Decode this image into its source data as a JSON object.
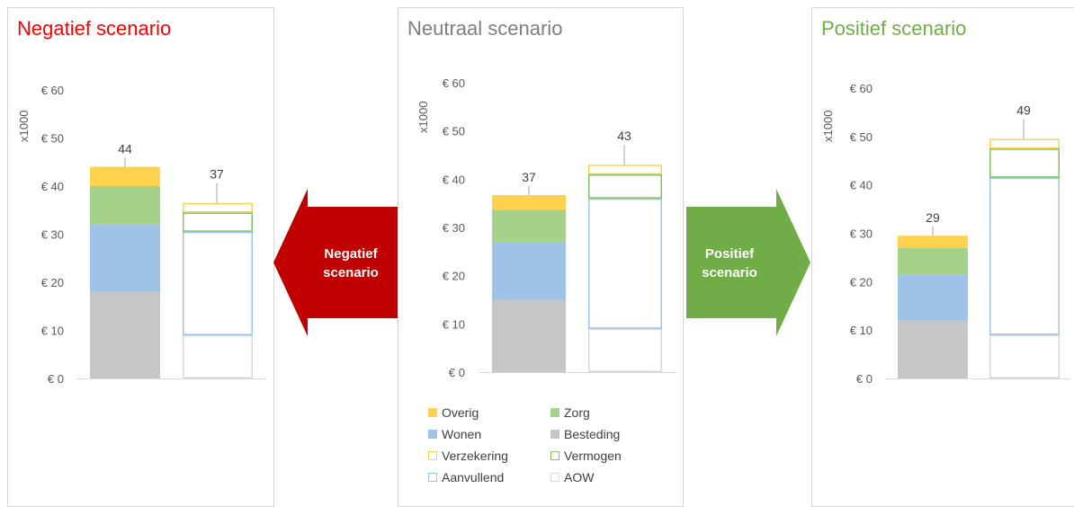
{
  "colors": {
    "Overig": "#ffd24d",
    "Zorg": "#a6d18a",
    "Wonen": "#9fc3e7",
    "Besteding": "#c6c6c6",
    "Verzekering": "#ffd24d",
    "Vermogen": "#82c36a",
    "Aanvullend": "#9fc3e7",
    "AOW": "#d9d9d9"
  },
  "panels": [
    {
      "title": "Negatief scenario",
      "title_color": "#ff0000",
      "ylabel": "x1000"
    },
    {
      "title": "Neutraal scenario",
      "title_color": "#7f7f7f",
      "ylabel": "x1000"
    },
    {
      "title": "Positief scenario",
      "title_color": "#70ad47",
      "ylabel": "x1000"
    }
  ],
  "arrows": {
    "left": {
      "label_line1": "Negatief",
      "label_line2": "scenario",
      "color": "#c00000"
    },
    "right": {
      "label_line1": "Positief",
      "label_line2": "scenario",
      "color": "#70ad47"
    }
  },
  "legend": {
    "items": [
      {
        "key": "Overig",
        "label": "Overig",
        "style": "filled"
      },
      {
        "key": "Zorg",
        "label": "Zorg",
        "style": "filled"
      },
      {
        "key": "Wonen",
        "label": "Wonen",
        "style": "filled"
      },
      {
        "key": "Besteding",
        "label": "Besteding",
        "style": "filled"
      },
      {
        "key": "Verzekering",
        "label": "Verzekering",
        "style": "outline"
      },
      {
        "key": "Vermogen",
        "label": "Vermogen",
        "style": "outline"
      },
      {
        "key": "Aanvullend",
        "label": "Aanvullend",
        "style": "outline"
      },
      {
        "key": "AOW",
        "label": "AOW",
        "style": "outline"
      }
    ]
  },
  "chart_data": [
    {
      "type": "bar",
      "stacked": true,
      "title": "Negatief scenario",
      "ylabel": "x1000",
      "ylim": [
        0,
        60
      ],
      "yticks": [
        0,
        10,
        20,
        30,
        40,
        50,
        60
      ],
      "ytick_labels": [
        "€ 0",
        "€ 10",
        "€ 20",
        "€ 30",
        "€ 40",
        "€ 50",
        "€ 60"
      ],
      "bars": [
        {
          "total_label": "44",
          "style": "filled",
          "segments": [
            {
              "name": "Besteding",
              "value": 18
            },
            {
              "name": "Wonen",
              "value": 14
            },
            {
              "name": "Zorg",
              "value": 8
            },
            {
              "name": "Overig",
              "value": 4
            }
          ]
        },
        {
          "total_label": "37",
          "style": "outline",
          "segments": [
            {
              "name": "AOW",
              "value": 9
            },
            {
              "name": "Aanvullend",
              "value": 21.5
            },
            {
              "name": "Vermogen",
              "value": 4
            },
            {
              "name": "Verzekering",
              "value": 2
            }
          ]
        }
      ]
    },
    {
      "type": "bar",
      "stacked": true,
      "title": "Neutraal scenario",
      "ylabel": "x1000",
      "ylim": [
        0,
        60
      ],
      "yticks": [
        0,
        10,
        20,
        30,
        40,
        50,
        60
      ],
      "ytick_labels": [
        "€ 0",
        "€ 10",
        "€ 20",
        "€ 30",
        "€ 40",
        "€ 50",
        "€ 60"
      ],
      "bars": [
        {
          "total_label": "37",
          "style": "filled",
          "segments": [
            {
              "name": "Besteding",
              "value": 15
            },
            {
              "name": "Wonen",
              "value": 12
            },
            {
              "name": "Zorg",
              "value": 6.7
            },
            {
              "name": "Overig",
              "value": 3
            }
          ]
        },
        {
          "total_label": "43",
          "style": "outline",
          "segments": [
            {
              "name": "AOW",
              "value": 9
            },
            {
              "name": "Aanvullend",
              "value": 27
            },
            {
              "name": "Vermogen",
              "value": 5
            },
            {
              "name": "Verzekering",
              "value": 2
            }
          ]
        }
      ]
    },
    {
      "type": "bar",
      "stacked": true,
      "title": "Positief scenario",
      "ylabel": "x1000",
      "ylim": [
        0,
        60
      ],
      "yticks": [
        0,
        10,
        20,
        30,
        40,
        50,
        60
      ],
      "ytick_labels": [
        "€ 0",
        "€ 10",
        "€ 20",
        "€ 30",
        "€ 40",
        "€ 50",
        "€ 60"
      ],
      "bars": [
        {
          "total_label": "29",
          "style": "filled",
          "segments": [
            {
              "name": "Besteding",
              "value": 12
            },
            {
              "name": "Wonen",
              "value": 9.5
            },
            {
              "name": "Zorg",
              "value": 5.5
            },
            {
              "name": "Overig",
              "value": 2.5
            }
          ]
        },
        {
          "total_label": "49",
          "style": "outline",
          "segments": [
            {
              "name": "AOW",
              "value": 9
            },
            {
              "name": "Aanvullend",
              "value": 32.5
            },
            {
              "name": "Vermogen",
              "value": 6
            },
            {
              "name": "Verzekering",
              "value": 2
            }
          ]
        }
      ]
    }
  ]
}
